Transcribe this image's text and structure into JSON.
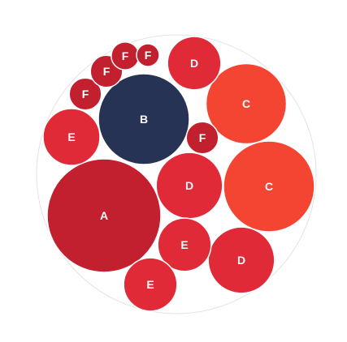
{
  "chart_data": {
    "type": "packed-bubble",
    "title": "",
    "colors": {
      "A": "#c21f2f",
      "B": "#263354",
      "C": "#f44533",
      "D": "#e02a38",
      "E": "#e02a38",
      "F": "#c21f2f"
    },
    "bubbles": [
      {
        "label": "A",
        "value": 100
      },
      {
        "label": "B",
        "value": 64
      },
      {
        "label": "C",
        "value": 50
      },
      {
        "label": "C",
        "value": 64
      },
      {
        "label": "D",
        "value": 22
      },
      {
        "label": "D",
        "value": 34
      },
      {
        "label": "D",
        "value": 34
      },
      {
        "label": "E",
        "value": 25
      },
      {
        "label": "E",
        "value": 22
      },
      {
        "label": "E",
        "value": 22
      },
      {
        "label": "F",
        "value": 8
      },
      {
        "label": "F",
        "value": 8
      },
      {
        "label": "F",
        "value": 6
      },
      {
        "label": "F",
        "value": 4
      },
      {
        "label": "F",
        "value": 8
      }
    ]
  }
}
